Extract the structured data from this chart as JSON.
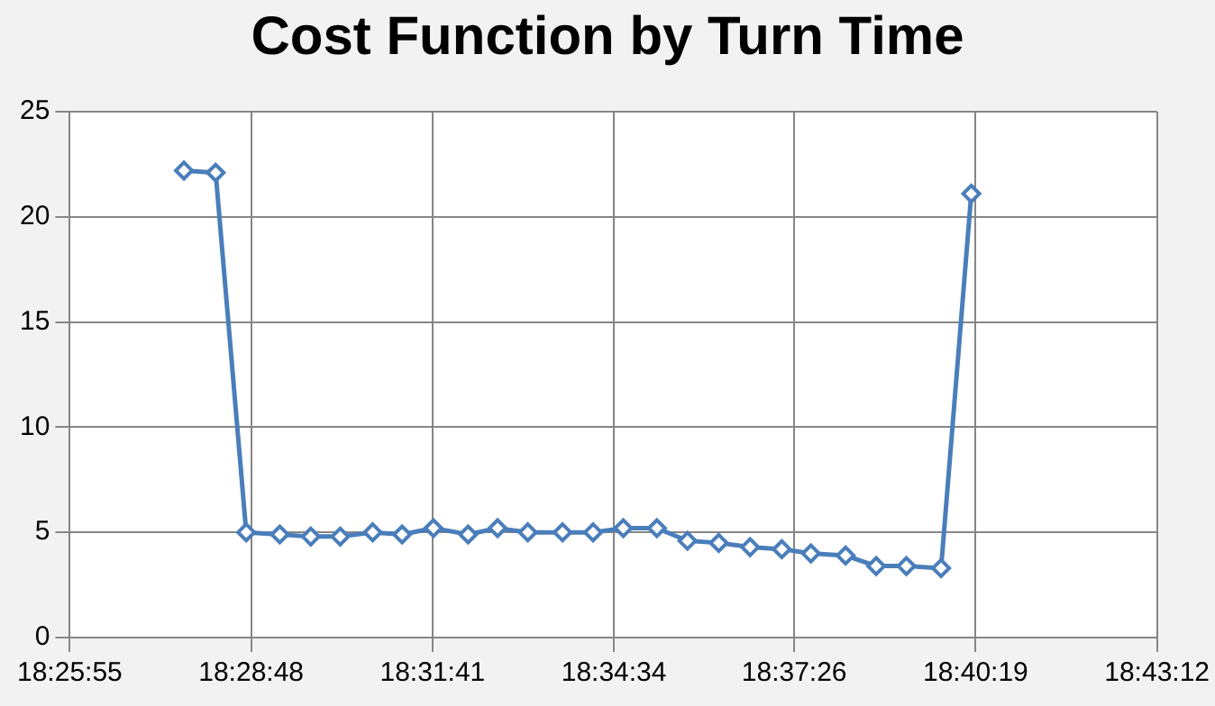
{
  "chart_data": {
    "type": "line",
    "title": "Cost Function by Turn Time",
    "x": [
      18.4622,
      18.4706,
      18.4787,
      18.4876,
      18.4958,
      18.5036,
      18.5122,
      18.52,
      18.5283,
      18.5375,
      18.5453,
      18.5533,
      18.5625,
      18.5706,
      18.5786,
      18.5875,
      18.5956,
      18.6039,
      18.6122,
      18.6206,
      18.6283,
      18.6375,
      18.6456,
      18.6536,
      18.6628,
      18.6708
    ],
    "series": [
      {
        "color": "#4a7ebb",
        "values": [
          22.2,
          22.1,
          5.0,
          4.9,
          4.8,
          4.8,
          5.0,
          4.9,
          5.2,
          4.9,
          5.2,
          5.0,
          5.0,
          5.0,
          5.2,
          5.2,
          4.6,
          4.5,
          4.3,
          4.2,
          4.0,
          3.9,
          3.4,
          3.4,
          3.3,
          21.1
        ]
      }
    ],
    "xlim": [
      18.43194,
      18.72
    ],
    "xticks": [
      {
        "value": 18.43194,
        "label": "18:25:55"
      },
      {
        "value": 18.48,
        "label": "18:28:48"
      },
      {
        "value": 18.52806,
        "label": "18:31:41"
      },
      {
        "value": 18.57611,
        "label": "18:34:34"
      },
      {
        "value": 18.62389,
        "label": "18:37:26"
      },
      {
        "value": 18.67194,
        "label": "18:40:19"
      },
      {
        "value": 18.72,
        "label": "18:43:12"
      }
    ],
    "ylim": [
      0,
      25
    ],
    "yticks": [
      0,
      5,
      10,
      15,
      20,
      25
    ],
    "grid": true,
    "legend": false,
    "marker": "diamond",
    "line_style": "solid"
  }
}
